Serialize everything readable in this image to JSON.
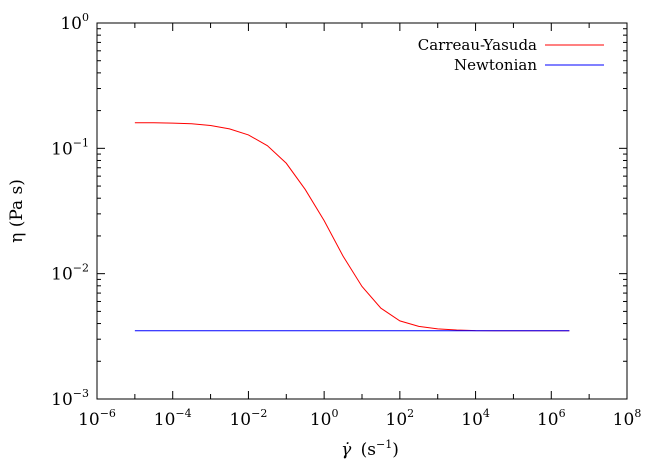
{
  "chart_data": {
    "type": "line",
    "xscale": "log",
    "yscale": "log",
    "xlim": [
      1e-06,
      100000000.0
    ],
    "ylim": [
      0.001,
      1
    ],
    "grid": false,
    "legend_position": "top-right",
    "xlabel": {
      "symbol": "γ̇",
      "unit": "(s",
      "unit_exp": "−1",
      "unit_close": ")"
    },
    "ylabel": "η (Pa s)",
    "x_ticks": [
      {
        "base": "10",
        "exp": "−6",
        "value": 1e-06
      },
      {
        "base": "10",
        "exp": "−4",
        "value": 0.0001
      },
      {
        "base": "10",
        "exp": "−2",
        "value": 0.01
      },
      {
        "base": "10",
        "exp": "0",
        "value": 1
      },
      {
        "base": "10",
        "exp": "2",
        "value": 100.0
      },
      {
        "base": "10",
        "exp": "4",
        "value": 10000.0
      },
      {
        "base": "10",
        "exp": "6",
        "value": 1000000.0
      },
      {
        "base": "10",
        "exp": "8",
        "value": 100000000.0
      }
    ],
    "y_ticks": [
      {
        "base": "10",
        "exp": "−3",
        "value": 0.001
      },
      {
        "base": "10",
        "exp": "−2",
        "value": 0.01
      },
      {
        "base": "10",
        "exp": "−1",
        "value": 0.1
      },
      {
        "base": "10",
        "exp": "0",
        "value": 1
      }
    ],
    "series": [
      {
        "name": "Carreau-Yasuda",
        "color": "#ff0000",
        "x": [
          1e-05,
          3.16e-05,
          0.0001,
          0.000316,
          0.001,
          0.00316,
          0.01,
          0.0316,
          0.1,
          0.316,
          1,
          3.16,
          10,
          31.6,
          100,
          316,
          1000,
          3160,
          10000.0,
          31600.0,
          100000.0,
          316000.0,
          1000000.0,
          3000000.0
        ],
        "y": [
          0.16,
          0.16,
          0.159,
          0.157,
          0.152,
          0.143,
          0.128,
          0.105,
          0.076,
          0.047,
          0.0265,
          0.0138,
          0.0079,
          0.0053,
          0.0042,
          0.0038,
          0.00363,
          0.00355,
          0.00351,
          0.0035,
          0.0035,
          0.0035,
          0.0035,
          0.0035
        ]
      },
      {
        "name": "Newtonian",
        "color": "#0000ff",
        "x": [
          1e-05,
          3000000.0
        ],
        "y": [
          0.0035,
          0.0035
        ]
      }
    ]
  }
}
